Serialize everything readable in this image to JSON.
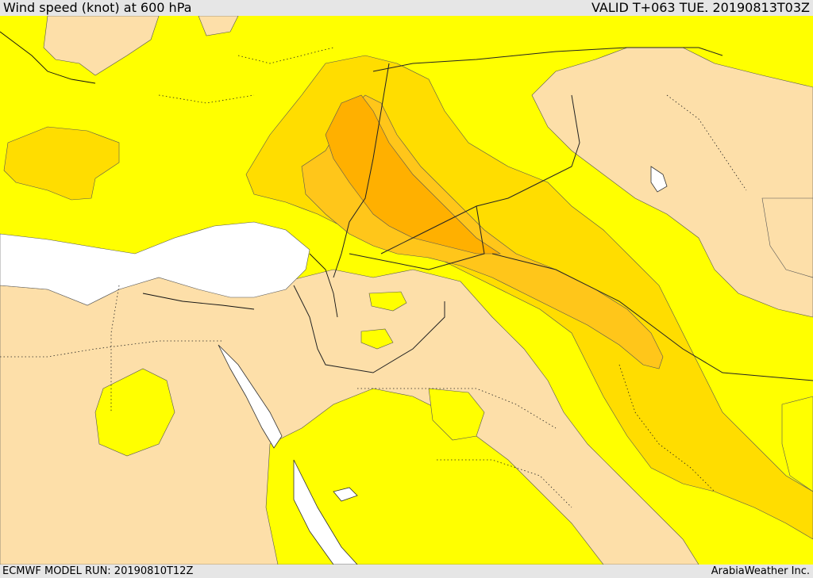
{
  "header": {
    "title": "Wind speed (knot) at 600 hPa",
    "valid": "VALID T+063 TUE. 20190813T03Z"
  },
  "footer": {
    "model_run": "ECMWF MODEL RUN: 20190810T12Z",
    "credit": "ArabiaWeather Inc."
  },
  "colors": {
    "white": "#ffffff",
    "tan": "#fddfa9",
    "yellow": "#ffff00",
    "gold": "#ffdd00",
    "orange1": "#ffc61a",
    "orange2": "#ffb000",
    "sea": "#ffffff"
  }
}
